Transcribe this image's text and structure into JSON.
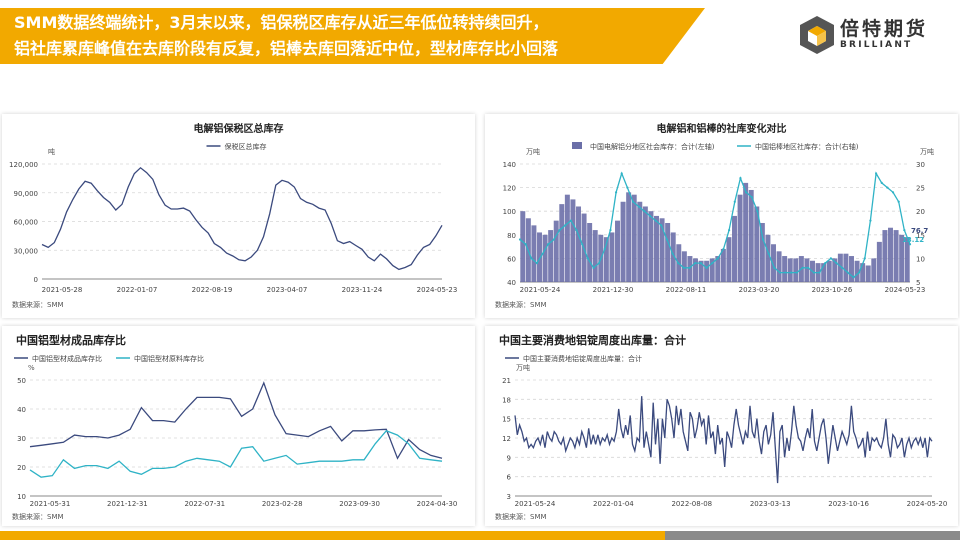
{
  "header": {
    "line1": "SMM数据终端统计，3月末以来，铝保税区库存从近三年低位转持续回升，",
    "line2": "铝社库累库峰值在去库阶段有反复，铝棒去库回落近中位，型材库存比小回落"
  },
  "logo": {
    "brand": "倍特期货",
    "en": "BRILLIANT"
  },
  "colors": {
    "banner": "#f2a900",
    "navy": "#3b4a7e",
    "cyan": "#2fb3c6",
    "bar": "#6b6fa8",
    "footer_dark": "#8a8a8a"
  },
  "chart_data": [
    {
      "type": "line",
      "title": "电解铝保税区总库存",
      "ylabel": "吨",
      "ylim": [
        0,
        120000
      ],
      "yticks": [
        "0",
        "30,000",
        "60,000",
        "90,000",
        "120,000"
      ],
      "xticks": [
        "2021-05-28",
        "2022-01-07",
        "2022-08-19",
        "2023-04-07",
        "2023-11-24",
        "2024-05-23"
      ],
      "legend": "top-center",
      "source": "数据来源：SMM",
      "series": [
        {
          "name": "保税区总库存",
          "color": "#3b4a7e",
          "values": [
            36000,
            33000,
            38000,
            52000,
            70000,
            83000,
            94000,
            102000,
            100000,
            92000,
            85000,
            80000,
            72000,
            78000,
            96000,
            110000,
            116000,
            111000,
            104000,
            88000,
            77000,
            73000,
            73000,
            74000,
            71000,
            62000,
            54000,
            48000,
            37000,
            33000,
            27000,
            24000,
            20000,
            19000,
            23000,
            30000,
            44000,
            68000,
            98000,
            103000,
            101000,
            96000,
            84000,
            80000,
            78000,
            74000,
            72000,
            58000,
            40000,
            37000,
            39000,
            35000,
            31000,
            23000,
            19000,
            26000,
            21000,
            14000,
            10000,
            12000,
            15000,
            25000,
            33000,
            36000,
            45000,
            56000
          ]
        }
      ]
    },
    {
      "type": "bar",
      "title": "电解铝和铝棒的社库变化对比",
      "ylabel": "万吨",
      "y2label": "万吨",
      "ylim": [
        40,
        140
      ],
      "y2lim": [
        5,
        30
      ],
      "yticks": [
        "40",
        "60",
        "80",
        "100",
        "120",
        "140"
      ],
      "y2ticks": [
        "5",
        "10",
        "15",
        "20",
        "25",
        "30"
      ],
      "xticks": [
        "2021-05-24",
        "2021-12-30",
        "2022-08-11",
        "2023-03-20",
        "2023-10-26",
        "2024-05-23"
      ],
      "legend": "top-center",
      "source": "数据来源：SMM",
      "annotations": [
        "76.7",
        "13.12"
      ],
      "series": [
        {
          "name": "中国电解铝分地区社会库存：合计(左轴)",
          "axis": "left",
          "type": "bar",
          "color": "#6b6fa8",
          "values": [
            100,
            94,
            88,
            82,
            80,
            84,
            92,
            106,
            114,
            110,
            104,
            98,
            90,
            84,
            80,
            78,
            82,
            92,
            108,
            116,
            114,
            108,
            104,
            100,
            96,
            94,
            90,
            82,
            72,
            66,
            62,
            60,
            58,
            58,
            60,
            62,
            68,
            78,
            96,
            114,
            124,
            118,
            104,
            90,
            80,
            72,
            66,
            62,
            60,
            60,
            62,
            60,
            58,
            56,
            56,
            58,
            60,
            64,
            64,
            62,
            58,
            56,
            54,
            60,
            74,
            84,
            86,
            84,
            80,
            78
          ]
        },
        {
          "name": "中国铝棒地区社库存：合计(右轴)",
          "axis": "right",
          "type": "line",
          "color": "#2fb3c6",
          "values": [
            14,
            13,
            10,
            9,
            11,
            13,
            14,
            16,
            17,
            18,
            16,
            13,
            10,
            8,
            9,
            12,
            16,
            24,
            28,
            25,
            22,
            21,
            20,
            19,
            18,
            17,
            14,
            11,
            9,
            8,
            8,
            9,
            9,
            8,
            9,
            10,
            12,
            16,
            22,
            27,
            24,
            23,
            20,
            14,
            11,
            8,
            7,
            7,
            7,
            7,
            8,
            8,
            7,
            7,
            9,
            10,
            9,
            8,
            7,
            6,
            7,
            10,
            18,
            28,
            26,
            25,
            24,
            22,
            16,
            13
          ]
        }
      ]
    },
    {
      "type": "line",
      "title": "中国铝型材成品库存比",
      "ylabel": "%",
      "ylim": [
        10,
        50
      ],
      "yticks": [
        "10",
        "20",
        "30",
        "40",
        "50"
      ],
      "xticks": [
        "2021-05-31",
        "2021-12-31",
        "2022-07-31",
        "2023-02-28",
        "2023-09-30",
        "2024-04-30"
      ],
      "legend": "top-left",
      "source": "数据来源：SMM",
      "series": [
        {
          "name": "中国铝型材成品库存比",
          "color": "#3b4a7e",
          "values": [
            27,
            27.5,
            28,
            28.5,
            31,
            30.5,
            30.5,
            30,
            31,
            33,
            40.5,
            36,
            36,
            35.5,
            40,
            44,
            44,
            44,
            43.5,
            37.5,
            40,
            49,
            38,
            31.5,
            31,
            30.5,
            32.5,
            34,
            29,
            32.5,
            32.5,
            32.8,
            33,
            23,
            29.5,
            26,
            24,
            23
          ]
        },
        {
          "name": "中国铝型材原料库存比",
          "color": "#2fb3c6",
          "values": [
            19,
            16.5,
            17,
            22.5,
            19.5,
            20.5,
            20.5,
            19.5,
            22,
            18.5,
            17.5,
            19.5,
            19.5,
            20,
            22,
            23,
            22.5,
            22,
            20,
            26.5,
            27,
            22,
            23,
            24,
            21,
            21.5,
            22,
            22,
            22,
            22.5,
            22.5,
            28,
            32.5,
            31,
            28,
            23,
            22.5,
            22
          ]
        }
      ]
    },
    {
      "type": "line",
      "title": "中国主要消费地铝锭周度出库量：合计",
      "ylabel": "万吨",
      "ylim": [
        3,
        21
      ],
      "yticks": [
        "3",
        "6",
        "9",
        "12",
        "15",
        "18",
        "21"
      ],
      "xticks": [
        "2021-05-24",
        "2022-01-04",
        "2022-08-08",
        "2023-03-13",
        "2023-10-16",
        "2024-05-20"
      ],
      "legend": "top-left",
      "source": "数据来源：SMM",
      "series": [
        {
          "name": "中国主要消费地铝锭周度出库量：合计",
          "color": "#3b4a7e",
          "values": [
            15.5,
            12.5,
            14,
            13,
            11.5,
            12,
            10.5,
            11,
            10.5,
            11.5,
            12,
            11,
            12.5,
            10.5,
            13,
            12,
            11.5,
            13,
            12.5,
            11.5,
            11,
            12,
            10,
            11,
            12,
            11.5,
            10.5,
            12,
            11,
            13,
            12,
            10.5,
            13.5,
            11,
            12.5,
            11,
            12.5,
            11,
            12,
            11.5,
            12.5,
            11,
            12,
            11.5,
            13,
            16.5,
            13.5,
            12,
            14,
            12.5,
            15.5,
            11,
            10,
            12,
            11.5,
            18.5,
            10.5,
            13,
            11,
            9,
            17.5,
            11,
            15,
            8,
            15,
            12,
            18,
            17,
            15,
            12,
            17,
            14,
            16.5,
            13,
            11.5,
            10,
            16,
            15,
            12,
            13.5,
            16,
            14,
            15,
            11,
            15.5,
            12,
            13,
            9.5,
            14,
            11,
            12,
            7.5,
            13,
            12,
            10.5,
            14,
            16.5,
            14,
            12.5,
            11,
            13,
            12,
            17,
            13,
            12,
            15,
            11.5,
            9.5,
            13,
            14,
            11,
            12.5,
            16,
            10.5,
            5,
            13,
            14,
            9,
            12,
            10,
            13,
            17,
            14,
            12,
            11.5,
            10,
            12,
            13.5,
            12,
            16.5,
            11.5,
            10,
            12,
            14,
            15,
            12,
            8,
            11,
            14,
            12,
            10,
            11.5,
            13,
            12,
            11,
            12.5,
            17,
            13,
            12,
            10.5,
            11,
            12,
            9,
            13,
            10,
            12,
            11.5,
            12,
            11,
            10.5,
            12,
            15,
            11,
            9,
            12.5,
            12,
            10.5,
            11,
            12,
            9,
            11,
            12,
            10.5,
            11.5,
            12,
            11,
            12,
            10.5,
            12,
            9,
            12,
            11.5
          ]
        }
      ]
    }
  ]
}
